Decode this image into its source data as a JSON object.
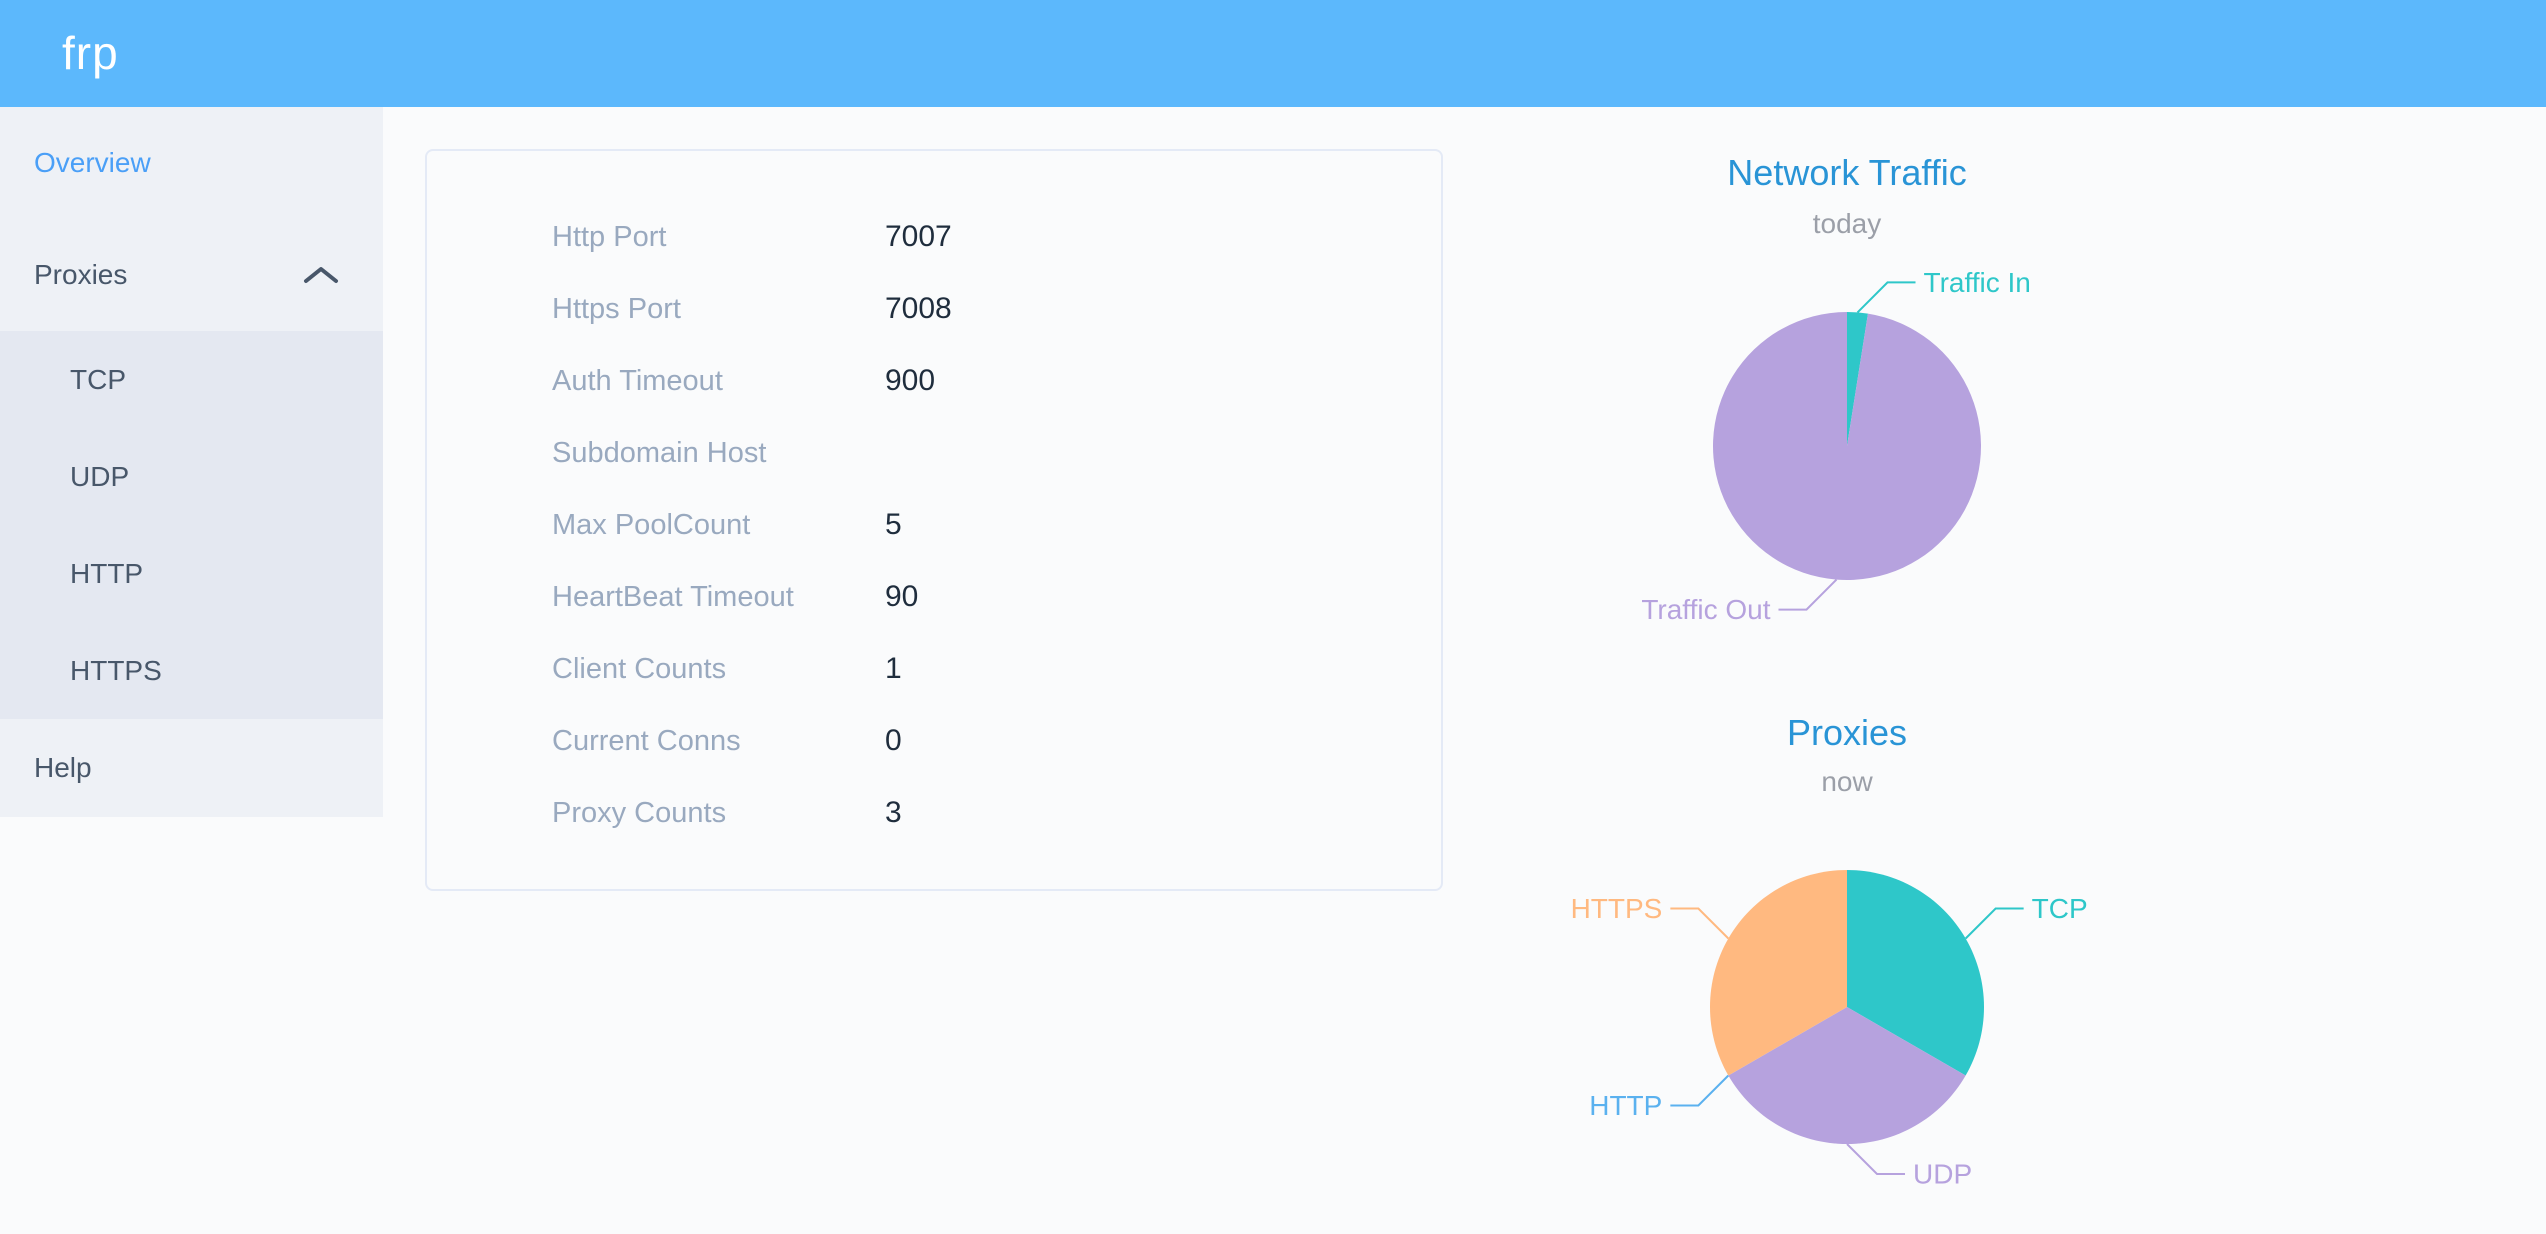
{
  "header": {
    "logo": "frp"
  },
  "colors": {
    "header_bg": "#5cb8fc",
    "active_menu_text": "#4a9ff7",
    "menu_text": "#48576a",
    "sidebar_bg": "#eef1f6",
    "submenu_bg": "#e4e8f1",
    "chart_title_blue": "#2994d6",
    "teal": "#2ec7c9",
    "purple": "#b6a2de",
    "blue": "#5ab1ef",
    "orange": "#ffb980"
  },
  "sidebar": {
    "items": [
      {
        "label": "Overview",
        "active": true
      },
      {
        "label": "Proxies",
        "expanded": true,
        "children": [
          "TCP",
          "UDP",
          "HTTP",
          "HTTPS"
        ]
      },
      {
        "label": "Help"
      }
    ]
  },
  "server_info": {
    "rows": [
      {
        "label": "Http Port",
        "value": "7007"
      },
      {
        "label": "Https Port",
        "value": "7008"
      },
      {
        "label": "Auth Timeout",
        "value": "900"
      },
      {
        "label": "Subdomain Host",
        "value": ""
      },
      {
        "label": "Max PoolCount",
        "value": "5"
      },
      {
        "label": "HeartBeat Timeout",
        "value": "90"
      },
      {
        "label": "Client Counts",
        "value": "1"
      },
      {
        "label": "Current Conns",
        "value": "0"
      },
      {
        "label": "Proxy Counts",
        "value": "3"
      }
    ]
  },
  "chart_data": [
    {
      "type": "pie",
      "title": "Network Traffic",
      "subtitle": "today",
      "unit": "percent of today's traffic (estimated from arc)",
      "legend_position": "none",
      "label_style": "outside-leader-lines",
      "slices": [
        {
          "label": "Traffic In",
          "value": 2.5,
          "color": "#2ec7c9"
        },
        {
          "label": "Traffic Out",
          "value": 97.5,
          "color": "#b6a2de"
        }
      ]
    },
    {
      "type": "pie",
      "title": "Proxies",
      "subtitle": "now",
      "unit": "proxy count",
      "legend_position": "none",
      "label_style": "outside-leader-lines",
      "slices": [
        {
          "label": "TCP",
          "value": 1,
          "color": "#2ec7c9"
        },
        {
          "label": "UDP",
          "value": 1,
          "color": "#b6a2de"
        },
        {
          "label": "HTTP",
          "value": 0,
          "color": "#5ab1ef"
        },
        {
          "label": "HTTPS",
          "value": 1,
          "color": "#ffb980"
        }
      ]
    }
  ]
}
